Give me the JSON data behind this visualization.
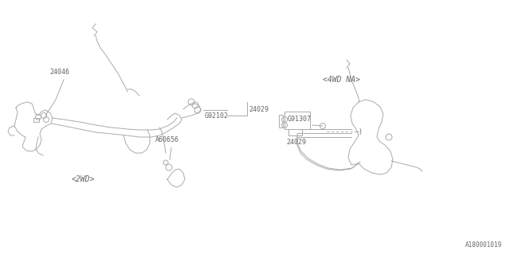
{
  "bg_color": "#ffffff",
  "line_color": "#aaaaaa",
  "text_color": "#666666",
  "fig_width": 6.4,
  "fig_height": 3.2,
  "dpi": 100,
  "labels": {
    "part_24046": "24046",
    "part_A60656": "A60656",
    "part_G92102": "G92102",
    "part_24029_left": "24029",
    "label_2WD": "<2WD>",
    "part_G91307": "G91307",
    "part_24029_right": "24029",
    "label_4WD": "<4WD NA>",
    "ref_code": "A180001019"
  },
  "lw": 0.7
}
